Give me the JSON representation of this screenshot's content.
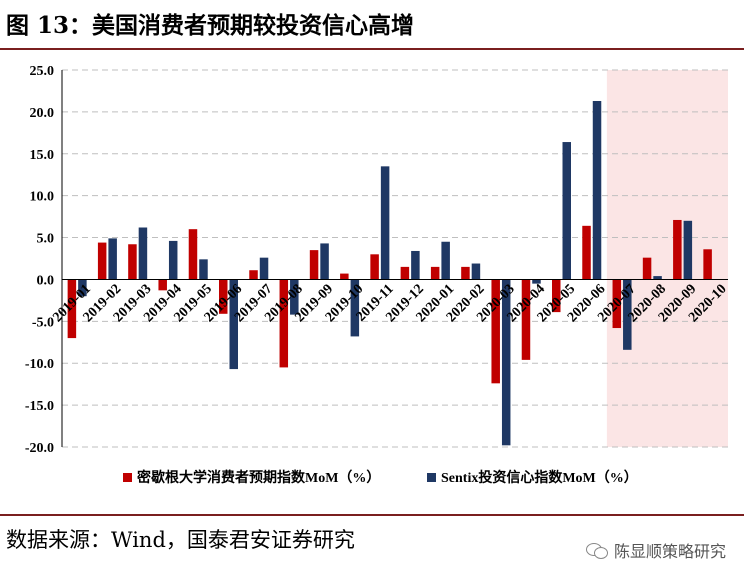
{
  "header": {
    "title": "图 13：美国消费者预期较投资信心高增"
  },
  "footer": {
    "source": "数据来源：Wind，国泰君安证券研究",
    "watermark": "陈显顺策略研究"
  },
  "colors": {
    "series1": "#c00000",
    "series2": "#1f3864",
    "highlight": "#fbe5e5",
    "grid": "#bfbfbf"
  },
  "chart_data": {
    "type": "bar",
    "categories": [
      "2019-01",
      "2019-02",
      "2019-03",
      "2019-04",
      "2019-05",
      "2019-06",
      "2019-07",
      "2019-08",
      "2019-09",
      "2019-10",
      "2019-11",
      "2019-12",
      "2020-01",
      "2020-02",
      "2020-03",
      "2020-04",
      "2020-05",
      "2020-06",
      "2020-07",
      "2020-08",
      "2020-09",
      "2020-10"
    ],
    "series": [
      {
        "name": "密歇根大学消费者预期指数MoM（%）",
        "values": [
          -7.0,
          4.4,
          4.2,
          -1.3,
          6.0,
          -4.1,
          1.1,
          -10.5,
          3.5,
          0.7,
          3.0,
          1.5,
          1.5,
          1.5,
          -12.4,
          -9.6,
          -3.9,
          6.4,
          -5.8,
          2.6,
          7.1,
          3.6
        ]
      },
      {
        "name": "Sentix投资信心指数MoM（%）",
        "values": [
          -2.0,
          4.9,
          6.2,
          4.6,
          2.4,
          -10.7,
          2.6,
          -4.2,
          4.3,
          -6.8,
          13.5,
          3.4,
          4.5,
          1.9,
          -19.8,
          -0.5,
          16.4,
          21.3,
          -8.4,
          0.4,
          7.0,
          null
        ]
      }
    ],
    "yticks": [
      "25.0",
      "20.0",
      "15.0",
      "10.0",
      "5.0",
      "0.0",
      "-5.0",
      "-10.0",
      "-15.0",
      "-20.0"
    ],
    "ylim": [
      -20,
      25
    ],
    "highlight_range": [
      "2020-07",
      "2020-10"
    ],
    "grid": true,
    "legend": "bottom"
  }
}
